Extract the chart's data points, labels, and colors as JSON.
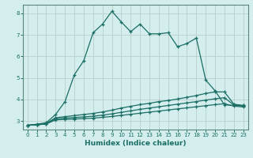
{
  "xlabel": "Humidex (Indice chaleur)",
  "bg_color": "#d4eeee",
  "grid_color": "#c8dede",
  "line_color": "#1a6e64",
  "xlim": [
    -0.5,
    23.5
  ],
  "ylim": [
    2.6,
    8.4
  ],
  "xticks": [
    0,
    1,
    2,
    3,
    4,
    5,
    6,
    7,
    8,
    9,
    10,
    11,
    12,
    13,
    14,
    15,
    16,
    17,
    18,
    19,
    20,
    21,
    22,
    23
  ],
  "yticks": [
    3,
    4,
    5,
    6,
    7,
    8
  ],
  "series": [
    {
      "x": [
        0,
        1,
        2,
        3,
        4,
        5,
        6,
        7,
        8,
        9,
        10,
        11,
        12,
        13,
        14,
        15,
        16,
        17,
        18,
        19,
        20,
        21,
        22,
        23
      ],
      "y": [
        2.8,
        2.85,
        2.92,
        3.3,
        3.9,
        5.15,
        5.8,
        7.1,
        7.5,
        8.1,
        7.6,
        7.15,
        7.5,
        7.05,
        7.05,
        7.1,
        6.45,
        6.6,
        6.85,
        4.9,
        4.4,
        3.75,
        3.72,
        3.72
      ]
    },
    {
      "x": [
        0,
        1,
        2,
        3,
        4,
        5,
        6,
        7,
        8,
        9,
        10,
        11,
        12,
        13,
        14,
        15,
        16,
        17,
        18,
        19,
        20,
        21,
        22,
        23
      ],
      "y": [
        2.8,
        2.82,
        2.88,
        3.15,
        3.2,
        3.25,
        3.3,
        3.35,
        3.42,
        3.5,
        3.6,
        3.68,
        3.76,
        3.82,
        3.9,
        3.95,
        4.02,
        4.1,
        4.18,
        4.28,
        4.35,
        4.35,
        3.78,
        3.72
      ]
    },
    {
      "x": [
        0,
        1,
        2,
        3,
        4,
        5,
        6,
        7,
        8,
        9,
        10,
        11,
        12,
        13,
        14,
        15,
        16,
        17,
        18,
        19,
        20,
        21,
        22,
        23
      ],
      "y": [
        2.8,
        2.82,
        2.87,
        3.1,
        3.13,
        3.16,
        3.19,
        3.22,
        3.27,
        3.33,
        3.4,
        3.47,
        3.54,
        3.6,
        3.66,
        3.72,
        3.78,
        3.84,
        3.9,
        3.97,
        4.03,
        4.08,
        3.74,
        3.69
      ]
    },
    {
      "x": [
        0,
        1,
        2,
        3,
        4,
        5,
        6,
        7,
        8,
        9,
        10,
        11,
        12,
        13,
        14,
        15,
        16,
        17,
        18,
        19,
        20,
        21,
        22,
        23
      ],
      "y": [
        2.8,
        2.82,
        2.86,
        3.05,
        3.07,
        3.09,
        3.11,
        3.13,
        3.17,
        3.21,
        3.26,
        3.31,
        3.36,
        3.41,
        3.46,
        3.51,
        3.56,
        3.61,
        3.66,
        3.71,
        3.76,
        3.8,
        3.69,
        3.65
      ]
    }
  ]
}
